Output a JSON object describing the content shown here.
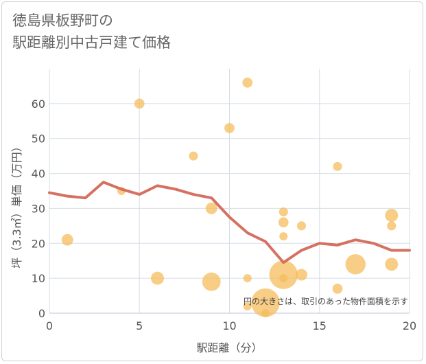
{
  "title_lines": [
    "徳島県板野町の",
    "駅距離別中古戸建て価格"
  ],
  "chart_data": {
    "type": "scatter",
    "title": "徳島県板野町の駅距離別中古戸建て価格",
    "xlabel": "駅距離（分）",
    "ylabel": "坪（3.3㎡）単価（万円）",
    "xlim": [
      0,
      20
    ],
    "ylim": [
      0,
      70
    ],
    "x_ticks": [
      0,
      5,
      10,
      15,
      20
    ],
    "y_ticks": [
      0,
      10,
      20,
      30,
      40,
      50,
      60
    ],
    "grid": true,
    "note": "円の大きさは、取引のあった物件面積を示す",
    "colors": {
      "bubble": "#f5bc5c",
      "line": "#d4695a"
    },
    "bubbles": [
      {
        "x": 1,
        "y": 21,
        "size": 2
      },
      {
        "x": 4,
        "y": 35,
        "size": 1
      },
      {
        "x": 5,
        "y": 60,
        "size": 1.5
      },
      {
        "x": 6,
        "y": 10,
        "size": 2.5
      },
      {
        "x": 8,
        "y": 45,
        "size": 1.2
      },
      {
        "x": 9,
        "y": 30,
        "size": 2
      },
      {
        "x": 9,
        "y": 9,
        "size": 5
      },
      {
        "x": 10,
        "y": 53,
        "size": 1.5
      },
      {
        "x": 11,
        "y": 66,
        "size": 1.5
      },
      {
        "x": 11,
        "y": 10,
        "size": 1
      },
      {
        "x": 11,
        "y": 2,
        "size": 1
      },
      {
        "x": 12,
        "y": 3,
        "size": 12
      },
      {
        "x": 12,
        "y": 0,
        "size": 1
      },
      {
        "x": 13,
        "y": 29,
        "size": 1.2
      },
      {
        "x": 13,
        "y": 26,
        "size": 1.5
      },
      {
        "x": 13,
        "y": 22,
        "size": 1
      },
      {
        "x": 13,
        "y": 11,
        "size": 12
      },
      {
        "x": 13,
        "y": 10,
        "size": 1
      },
      {
        "x": 14,
        "y": 25,
        "size": 1.2
      },
      {
        "x": 14,
        "y": 11,
        "size": 2
      },
      {
        "x": 16,
        "y": 42,
        "size": 1.2
      },
      {
        "x": 16,
        "y": 7,
        "size": 1.5
      },
      {
        "x": 17,
        "y": 14,
        "size": 6
      },
      {
        "x": 19,
        "y": 28,
        "size": 2.5
      },
      {
        "x": 19,
        "y": 25,
        "size": 1.2
      },
      {
        "x": 19,
        "y": 14,
        "size": 2.5
      }
    ],
    "series": [
      {
        "type": "line",
        "x": [
          0,
          1,
          2,
          3,
          4,
          5,
          6,
          7,
          8,
          9,
          10,
          11,
          12,
          13,
          14,
          15,
          16,
          17,
          18,
          19,
          20
        ],
        "values": [
          34.5,
          33.5,
          33,
          37.5,
          35.5,
          34,
          36.5,
          35.5,
          34,
          33,
          27.5,
          23,
          20.5,
          14.5,
          18,
          20,
          19.5,
          21,
          20,
          18,
          18
        ]
      }
    ]
  }
}
